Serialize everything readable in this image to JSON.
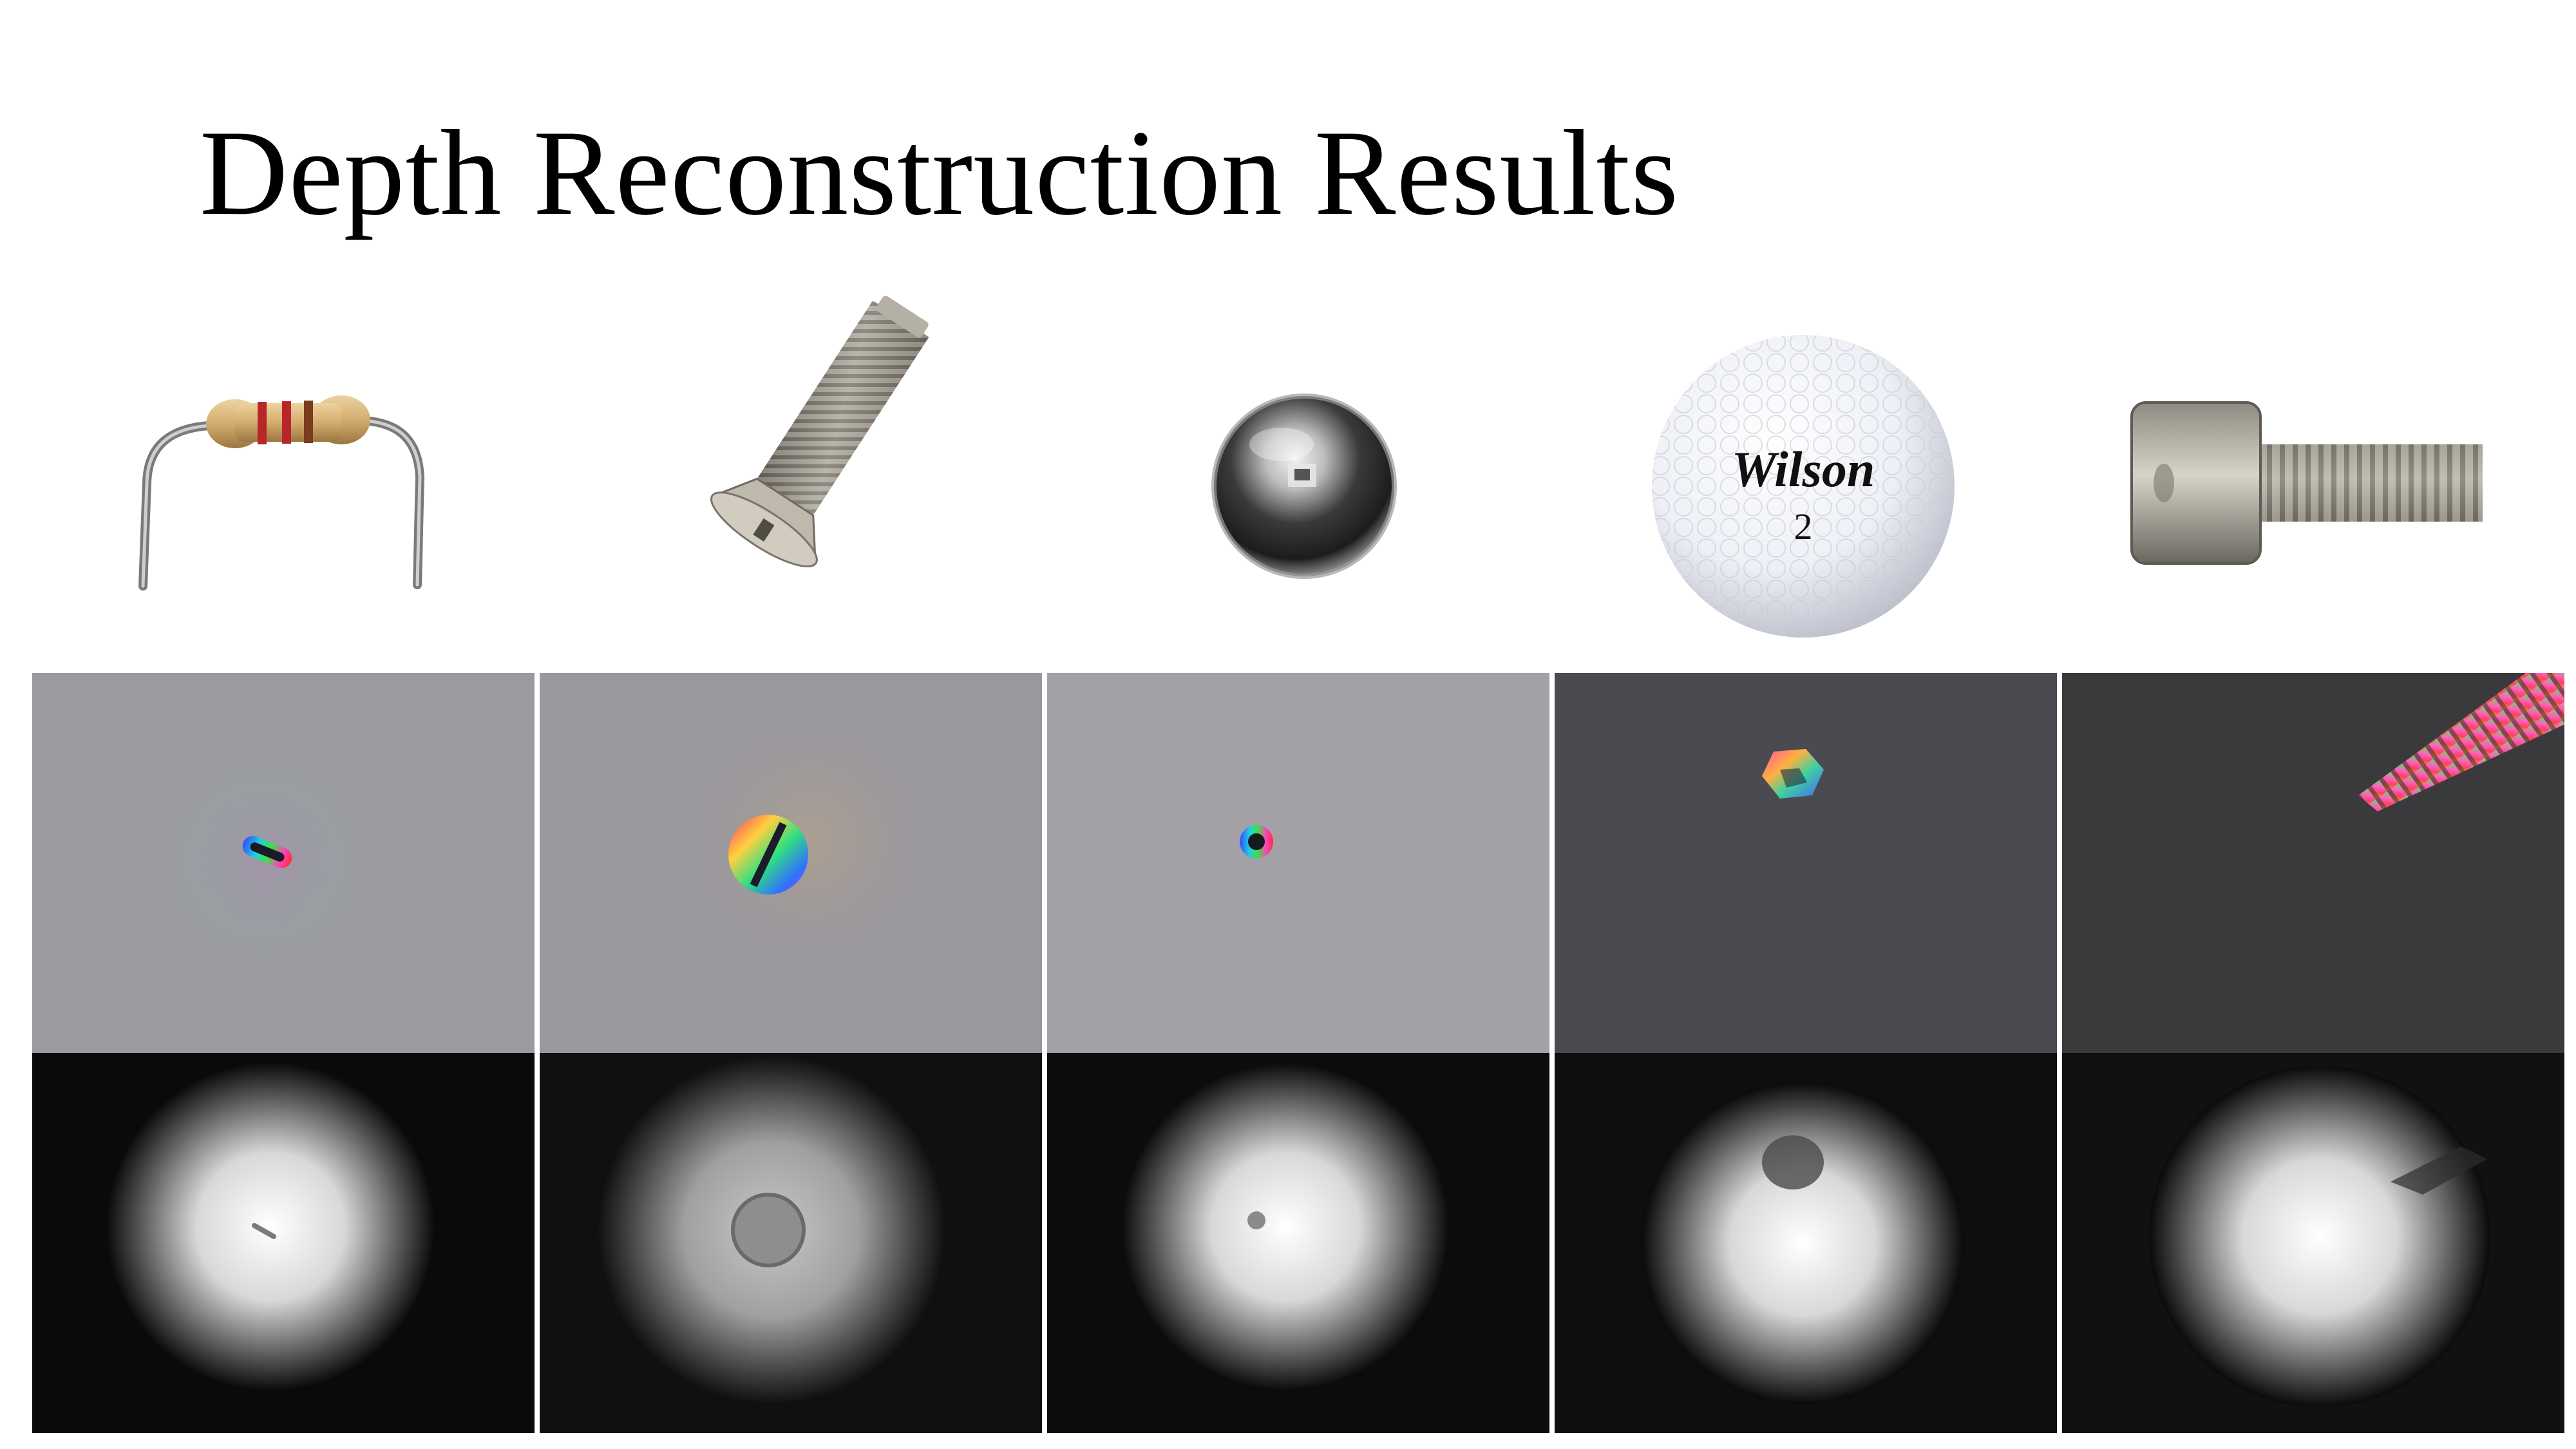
{
  "slide": {
    "title": "Depth Reconstruction Results"
  },
  "objects": [
    {
      "id": "resistor",
      "icon": "resistor-photo"
    },
    {
      "id": "slotted-screw",
      "icon": "screw-photo"
    },
    {
      "id": "steel-ball",
      "icon": "ball-bearing-photo"
    },
    {
      "id": "golf-ball",
      "icon": "golf-ball-photo",
      "brand_text": "Wilson",
      "number_text": "2"
    },
    {
      "id": "socket-cap-bolt",
      "icon": "bolt-photo"
    }
  ],
  "rows": [
    "captured-color-image",
    "reconstructed-depth-map"
  ],
  "colors": {
    "background": "#ffffff",
    "title": "#000000",
    "panel_light_bg": "#9a989c",
    "panel_dark_bg": "#3a3a3c",
    "depth_bg": "#0a0a0a",
    "resistor_body": "#d4ad6e",
    "resistor_band": "#b8262a",
    "metal": "#a9a9a6"
  }
}
